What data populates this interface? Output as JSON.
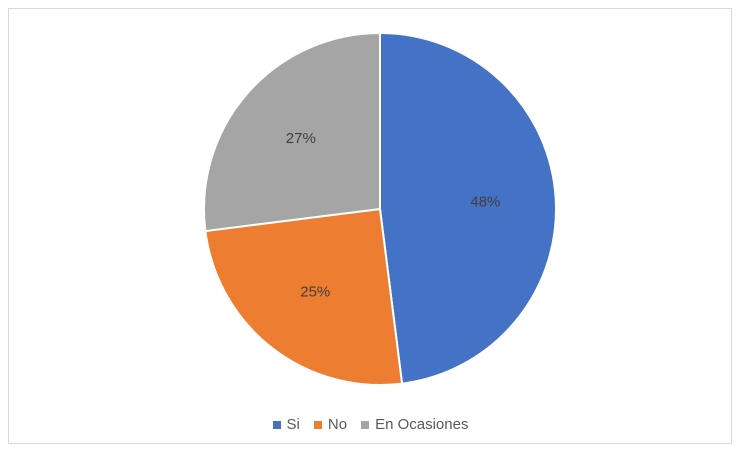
{
  "chart_data": {
    "type": "pie",
    "title": "",
    "categories": [
      "Si",
      "No",
      "En Ocasiones"
    ],
    "values": [
      48,
      25,
      27
    ],
    "labels": [
      "48%",
      "25%",
      "27%"
    ],
    "colors": [
      "#4472c4",
      "#ed7d31",
      "#a5a5a5"
    ],
    "legend_position": "bottom",
    "start_angle": "12 o'clock",
    "direction": "clockwise"
  }
}
